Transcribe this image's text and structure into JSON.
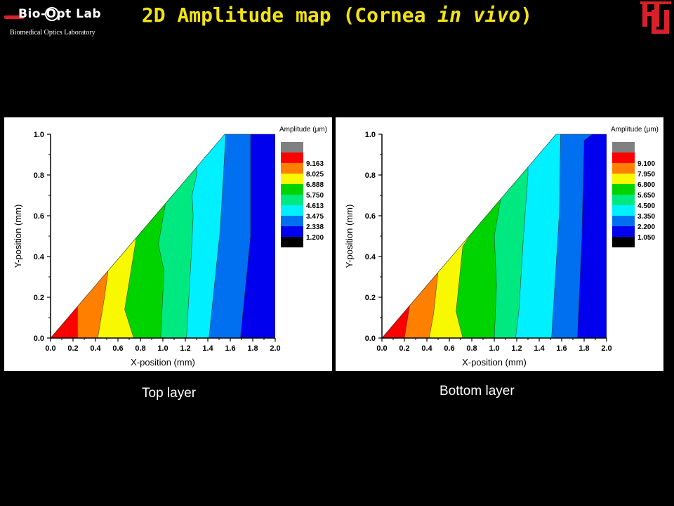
{
  "header": {
    "logo_text": "Bio-Opt Lab",
    "logo_subtitle": "Biomedical Optics Laboratory",
    "title_main": "2D Amplitude map (Cornea ",
    "title_italic": "in vivo",
    "title_end": ")",
    "right_logo": "UH"
  },
  "colors": {
    "background": "#000000",
    "title": "#f2e310",
    "levels": [
      "#000000",
      "#0000ee",
      "#0070f0",
      "#00f0ff",
      "#00e880",
      "#00d400",
      "#f8f800",
      "#ff8000",
      "#ff0000",
      "#808080"
    ]
  },
  "chart_data": [
    {
      "type": "heatmap",
      "caption": "Top layer",
      "xlabel": "X-position (mm)",
      "ylabel": "Y-position (mm)",
      "legend_title": "Amplitude (μm)",
      "xlim": [
        0.0,
        2.0
      ],
      "ylim": [
        0.0,
        1.0
      ],
      "xticks": [
        "0.0",
        "0.2",
        "0.4",
        "0.6",
        "0.8",
        "1.0",
        "1.2",
        "1.4",
        "1.6",
        "1.8",
        "2.0"
      ],
      "yticks": [
        "0.0",
        "0.2",
        "0.4",
        "0.6",
        "0.8",
        "1.0"
      ],
      "legend_levels": [
        "9.163",
        "8.025",
        "6.888",
        "5.750",
        "4.613",
        "3.475",
        "2.338",
        "1.200"
      ],
      "legend_placement": "right",
      "bands": [
        {
          "color_index": 8,
          "boundary": [
            [
              0.24,
              0.0
            ],
            [
              0.24,
              0.15
            ]
          ]
        },
        {
          "color_index": 7,
          "boundary": [
            [
              0.42,
              0.0
            ],
            [
              0.48,
              0.2
            ],
            [
              0.51,
              0.32
            ]
          ]
        },
        {
          "color_index": 6,
          "boundary": [
            [
              0.74,
              0.0
            ],
            [
              0.66,
              0.14
            ],
            [
              0.76,
              0.48
            ]
          ]
        },
        {
          "color_index": 5,
          "boundary": [
            [
              0.98,
              0.0
            ],
            [
              1.01,
              0.33
            ],
            [
              0.96,
              0.46
            ],
            [
              1.02,
              0.65
            ]
          ]
        },
        {
          "color_index": 4,
          "boundary": [
            [
              1.21,
              0.0
            ],
            [
              1.25,
              0.38
            ],
            [
              1.27,
              0.6
            ],
            [
              1.26,
              0.7
            ],
            [
              1.3,
              0.8
            ]
          ]
        },
        {
          "color_index": 3,
          "boundary": [
            [
              1.41,
              0.0
            ],
            [
              1.51,
              0.53
            ],
            [
              1.56,
              1.0
            ]
          ]
        },
        {
          "color_index": 2,
          "boundary": [
            [
              1.69,
              0.0
            ],
            [
              1.78,
              0.5
            ],
            [
              1.78,
              1.0
            ]
          ]
        },
        {
          "color_index": 1,
          "boundary": [
            [
              2.0,
              0.0
            ],
            [
              2.0,
              1.0
            ]
          ]
        }
      ]
    },
    {
      "type": "heatmap",
      "caption": "Bottom layer",
      "xlabel": "X-position (mm)",
      "ylabel": "Y-position (mm)",
      "legend_title": "Amplitude (μm)",
      "xlim": [
        0.0,
        2.0
      ],
      "ylim": [
        0.0,
        1.0
      ],
      "xticks": [
        "0.0",
        "0.2",
        "0.4",
        "0.6",
        "0.8",
        "1.0",
        "1.2",
        "1.4",
        "1.6",
        "1.8",
        "2.0"
      ],
      "yticks": [
        "0.0",
        "0.2",
        "0.4",
        "0.6",
        "0.8",
        "1.0"
      ],
      "legend_levels": [
        "9.100",
        "7.950",
        "6.800",
        "5.650",
        "4.500",
        "3.350",
        "2.200",
        "1.050"
      ],
      "legend_placement": "right",
      "bands": [
        {
          "color_index": 8,
          "boundary": [
            [
              0.2,
              0.0
            ],
            [
              0.25,
              0.17
            ]
          ]
        },
        {
          "color_index": 7,
          "boundary": [
            [
              0.42,
              0.0
            ],
            [
              0.46,
              0.12
            ],
            [
              0.5,
              0.33
            ]
          ]
        },
        {
          "color_index": 6,
          "boundary": [
            [
              0.72,
              0.0
            ],
            [
              0.66,
              0.13
            ],
            [
              0.72,
              0.45
            ],
            [
              0.78,
              0.5
            ]
          ]
        },
        {
          "color_index": 5,
          "boundary": [
            [
              1.0,
              0.0
            ],
            [
              1.02,
              0.26
            ],
            [
              1.0,
              0.5
            ],
            [
              1.06,
              0.69
            ]
          ]
        },
        {
          "color_index": 4,
          "boundary": [
            [
              1.19,
              0.0
            ],
            [
              1.22,
              0.14
            ],
            [
              1.26,
              0.5
            ],
            [
              1.3,
              0.8
            ]
          ]
        },
        {
          "color_index": 3,
          "boundary": [
            [
              1.51,
              0.0
            ],
            [
              1.58,
              0.62
            ],
            [
              1.59,
              1.0
            ]
          ]
        },
        {
          "color_index": 2,
          "boundary": [
            [
              1.74,
              0.0
            ],
            [
              1.78,
              0.5
            ],
            [
              1.8,
              0.97
            ],
            [
              1.87,
              1.0
            ]
          ]
        },
        {
          "color_index": 1,
          "boundary": [
            [
              2.0,
              0.0
            ],
            [
              2.0,
              1.0
            ]
          ]
        }
      ]
    }
  ]
}
